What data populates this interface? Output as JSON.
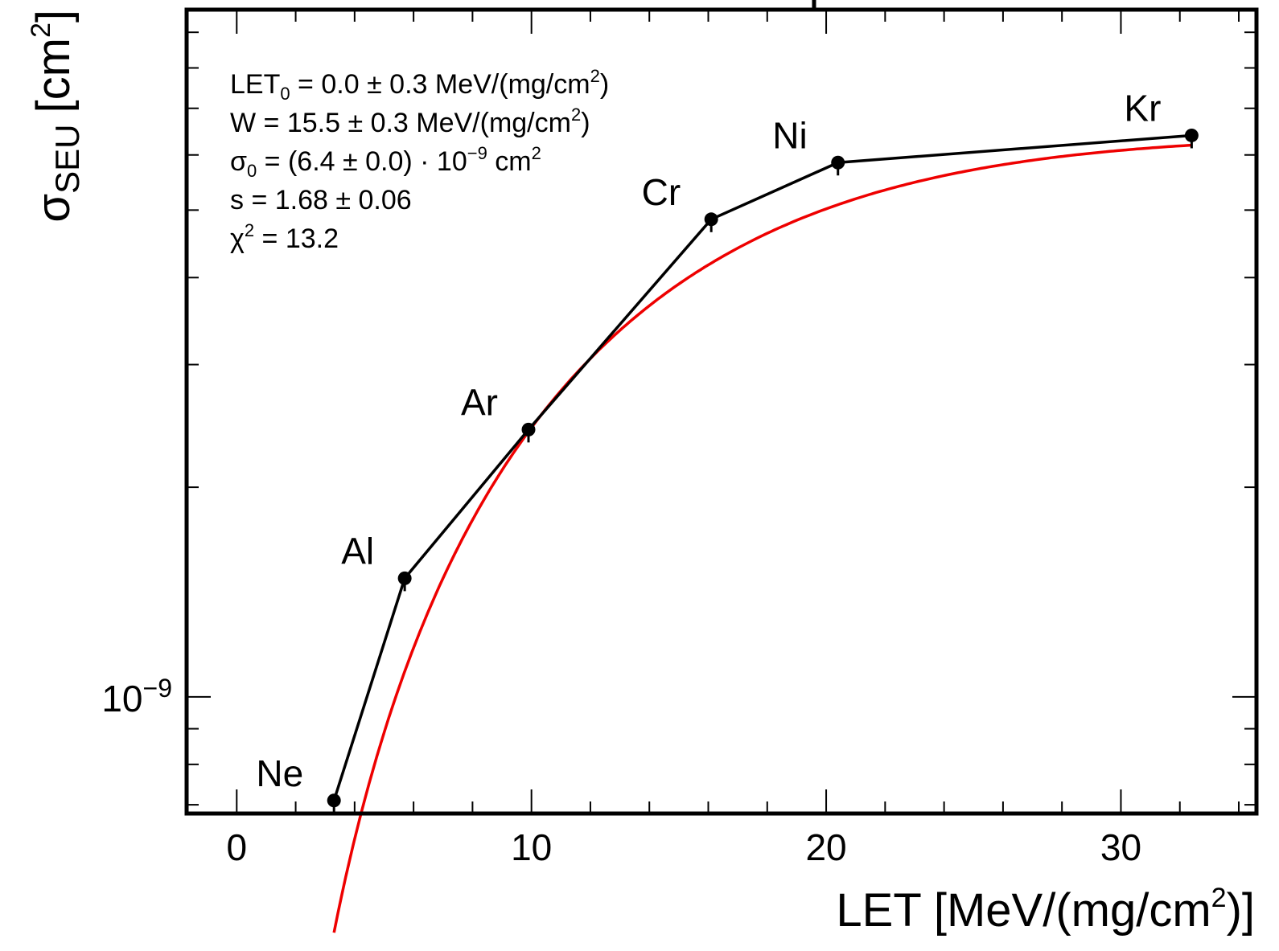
{
  "chart_data": {
    "type": "scatter",
    "x_axis": {
      "label": "LET [MeV/(mg/cm",
      "label_sup": "2",
      "label_end": ")]",
      "range": [
        -1.7,
        34.6
      ],
      "ticks": [
        0,
        10,
        20,
        30
      ],
      "tick_labels": [
        "0",
        "10",
        "20",
        "30"
      ]
    },
    "y_axis": {
      "label": "σ",
      "label_sub": "SEU",
      "label_unit": "[cm",
      "label_sup": "2",
      "label_end": "]",
      "scale": "log",
      "range": [
        6.8e-10,
        9.7e-09
      ],
      "labeled_tick": {
        "value": 1e-09,
        "base": "10",
        "exp": "−9"
      }
    },
    "series": [
      {
        "kind": "measured",
        "color": "#000000",
        "points": [
          {
            "ion": "Ne",
            "x": 3.3,
            "y": 7.1e-10
          },
          {
            "ion": "Al",
            "x": 5.7,
            "y": 1.48e-09
          },
          {
            "ion": "Ar",
            "x": 9.9,
            "y": 2.42e-09
          },
          {
            "ion": "Cr",
            "x": 16.1,
            "y": 4.85e-09
          },
          {
            "ion": "Ni",
            "x": 20.4,
            "y": 5.85e-09
          },
          {
            "ion": "Kr",
            "x": 32.4,
            "y": 6.4e-09
          }
        ]
      },
      {
        "kind": "weibull-fit",
        "color": "#ee0000",
        "params": {
          "let0": 0.0,
          "w": 15.5,
          "sigma0": 6.4e-09,
          "s": 1.68
        },
        "x_range": [
          3.3,
          32.4
        ]
      }
    ],
    "annotations": [
      {
        "main": "LET",
        "sub": "0",
        "rest": " = 0.0 ± 0.3  MeV/(mg/cm",
        "sup": "2",
        "end": ")"
      },
      {
        "main": "W = 15.5 ± 0.3  MeV/(mg/cm",
        "sup": "2",
        "end": ")"
      },
      {
        "main": "σ",
        "sub": "0",
        "rest": " = (6.4 ± 0.0) · 10",
        "sup": "−9",
        "end": "  cm",
        "sup2": "2"
      },
      {
        "main": "s = 1.68 ± 0.06"
      },
      {
        "main": "χ",
        "sup": "2",
        "end": " = 13.2"
      }
    ]
  }
}
